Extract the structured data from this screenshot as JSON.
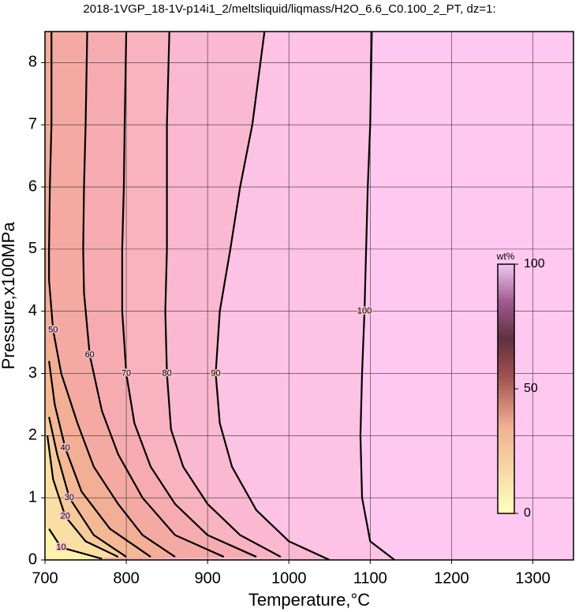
{
  "chart_data": {
    "type": "contour",
    "title": "2018-1VGP_18-1V-p14i1_2/meltsliquid/liqmass/H2O_6.6_C0.100_2_PT, dz=1:",
    "x_label": "Temperature,°C",
    "y_label": "Pressure,x100MPa",
    "xlim": [
      700,
      1350
    ],
    "ylim": [
      0,
      8.5
    ],
    "xticks": [
      700,
      800,
      900,
      1000,
      1100,
      1200,
      1300
    ],
    "yticks": [
      0,
      1,
      2,
      3,
      4,
      5,
      6,
      7,
      8
    ],
    "grid": true,
    "contours": [
      {
        "level": 100,
        "x": [
          1130,
          1100,
          1090,
          1088,
          1090,
          1093,
          1095,
          1097,
          1100,
          1102
        ],
        "y": [
          0,
          0.3,
          1,
          2,
          3,
          4,
          5,
          6,
          7,
          8.5
        ]
      },
      {
        "level": 90,
        "x": [
          1050,
          1000,
          960,
          930,
          915,
          910,
          915,
          928,
          940,
          955,
          970
        ],
        "y": [
          0,
          0.3,
          0.8,
          1.5,
          2.2,
          3,
          4,
          5,
          6,
          7,
          8.5
        ]
      },
      {
        "level": 80,
        "x": [
          990,
          940,
          900,
          870,
          855,
          850,
          848,
          850,
          850,
          850,
          853
        ],
        "y": [
          0.05,
          0.4,
          0.9,
          1.5,
          2.1,
          3,
          4,
          5,
          6,
          7,
          8.5
        ]
      },
      {
        "level": 70,
        "x": [
          960,
          900,
          860,
          830,
          810,
          800,
          795,
          795,
          797,
          798,
          800
        ],
        "y": [
          0.05,
          0.4,
          0.9,
          1.5,
          2.2,
          3,
          4,
          5,
          6,
          7,
          8.5
        ]
      },
      {
        "level": 60,
        "x": [
          920,
          860,
          820,
          790,
          770,
          755,
          748,
          747,
          748,
          750,
          752
        ],
        "y": [
          0.05,
          0.4,
          1,
          1.7,
          2.4,
          3.3,
          4.3,
          5,
          6,
          7,
          8.5
        ]
      },
      {
        "level": 50,
        "x": [
          860,
          820,
          790,
          760,
          740,
          720,
          710,
          705,
          705,
          706,
          708,
          708
        ],
        "y": [
          0.05,
          0.4,
          0.9,
          1.5,
          2.2,
          3,
          3.7,
          4.5,
          5,
          6,
          7,
          8.5
        ]
      },
      {
        "level": 40,
        "x": [
          830,
          780,
          745,
          725,
          712,
          705
        ],
        "y": [
          0.05,
          0.5,
          1.1,
          1.8,
          2.5,
          3.2
        ]
      },
      {
        "level": 30,
        "x": [
          800,
          760,
          730,
          715,
          705
        ],
        "y": [
          0.05,
          0.4,
          1,
          1.7,
          2.3
        ]
      },
      {
        "level": 20,
        "x": [
          790,
          750,
          725,
          710,
          703
        ],
        "y": [
          0.05,
          0.3,
          0.7,
          1.3,
          2
        ]
      },
      {
        "level": 10,
        "x": [
          770,
          720,
          705
        ],
        "y": [
          0.02,
          0.2,
          0.5
        ]
      }
    ],
    "colorbar": {
      "label": "wt%",
      "lim": [
        0,
        100
      ],
      "ticks": [
        0,
        50,
        100
      ]
    }
  }
}
